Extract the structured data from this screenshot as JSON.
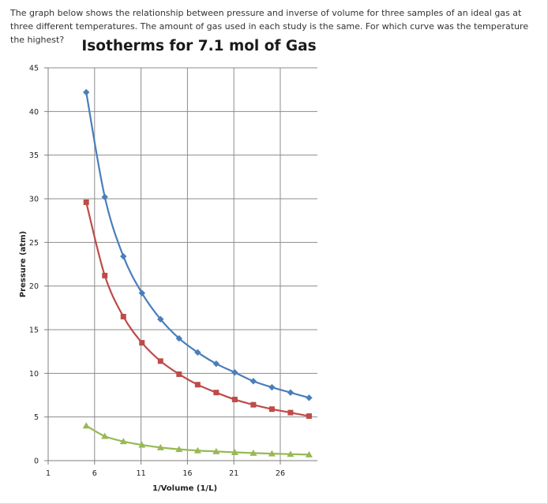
{
  "question": {
    "text": "The graph below shows the relationship between pressure and inverse of volume for three samples of an ideal gas at three different temperatures. The amount of gas used in each study is the same. For which curve was the temperature the highest?"
  },
  "chart_data": {
    "type": "line",
    "title": "Isotherms for 7.1 mol of Gas",
    "xlabel": "1/Volume (1/L)",
    "ylabel": "Pressure (atm)",
    "xlim": [
      1,
      30
    ],
    "ylim": [
      0,
      45
    ],
    "xticks": [
      1,
      6,
      11,
      16,
      21,
      26
    ],
    "yticks": [
      0,
      5,
      10,
      15,
      20,
      25,
      30,
      35,
      40,
      45
    ],
    "grid": true,
    "legend": "none",
    "series": [
      {
        "color": "#4a7ebb",
        "marker": "diamond",
        "x": [
          5.1,
          7.1,
          9.1,
          11.1,
          13.1,
          15.1,
          17.1,
          19.1,
          21.1,
          23.1,
          25.1,
          27.1,
          29.1
        ],
        "y": [
          42.2,
          30.2,
          23.4,
          19.2,
          16.2,
          14.0,
          12.4,
          11.1,
          10.1,
          9.1,
          8.4,
          7.8,
          7.2
        ]
      },
      {
        "color": "#be4b48",
        "marker": "square",
        "x": [
          5.1,
          7.1,
          9.1,
          11.1,
          13.1,
          15.1,
          17.1,
          19.1,
          21.1,
          23.1,
          25.1,
          27.1,
          29.1
        ],
        "y": [
          29.6,
          21.2,
          16.5,
          13.5,
          11.4,
          9.9,
          8.7,
          7.8,
          7.0,
          6.4,
          5.9,
          5.5,
          5.1
        ]
      },
      {
        "color": "#98b954",
        "marker": "triangle",
        "x": [
          5.1,
          7.1,
          9.1,
          11.1,
          13.1,
          15.1,
          17.1,
          19.1,
          21.1,
          23.1,
          25.1,
          27.1,
          29.1
        ],
        "y": [
          4.0,
          2.8,
          2.2,
          1.8,
          1.5,
          1.3,
          1.15,
          1.05,
          0.95,
          0.87,
          0.8,
          0.74,
          0.69
        ]
      }
    ]
  }
}
